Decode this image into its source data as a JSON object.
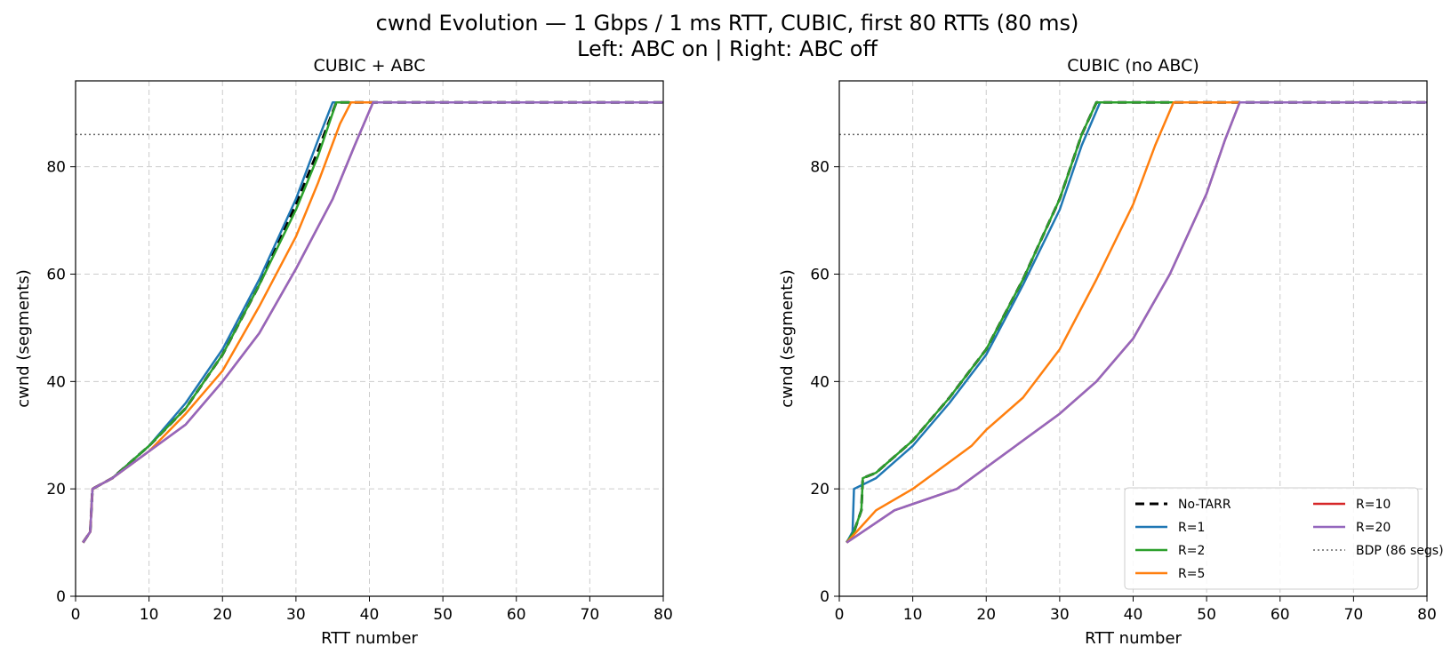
{
  "chart_data": {
    "type": "line",
    "title_line1": "cwnd Evolution — 1 Gbps / 1 ms RTT, CUBIC, first 80 RTTs (80 ms)",
    "title_line2": "Left: ABC on  |  Right: ABC off",
    "legend_labels": {
      "notarr": "No-TARR",
      "r1": "R=1",
      "r2": "R=2",
      "r5": "R=5",
      "r10": "R=10",
      "r20": "R=20",
      "bdp": "BDP (86 segs)"
    },
    "colors": {
      "notarr": "#000000",
      "r1": "#1f77b4",
      "r2": "#2ca02c",
      "r5": "#ff7f0e",
      "r10": "#d62728",
      "r20": "#9467bd",
      "bdp": "#666666"
    },
    "bdp": 86,
    "panels": [
      {
        "title": "CUBIC + ABC",
        "xlabel": "RTT number",
        "ylabel": "cwnd (segments)",
        "xlim": [
          0,
          80
        ],
        "ylim": [
          0,
          96
        ],
        "xticks": [
          0,
          10,
          20,
          30,
          40,
          50,
          60,
          70,
          80
        ],
        "yticks": [
          0,
          20,
          40,
          60,
          80
        ],
        "legend": false,
        "series": [
          {
            "key": "notarr",
            "name": "No-TARR",
            "dashed": true,
            "x": [
              1,
              2,
              2.3,
              5,
              10,
              15,
              20,
              25,
              30,
              33,
              35.5,
              80
            ],
            "y": [
              10,
              12,
              20,
              22,
              28,
              35,
              45,
              58,
              73,
              83,
              92,
              92
            ]
          },
          {
            "key": "r1",
            "name": "R=1",
            "x": [
              1,
              2,
              2.3,
              5,
              10,
              15,
              20,
              25,
              30,
              33,
              35,
              80
            ],
            "y": [
              10,
              12,
              20,
              22,
              28,
              36,
              46,
              59,
              74,
              85,
              92,
              92
            ]
          },
          {
            "key": "r2",
            "name": "R=2",
            "x": [
              1,
              2,
              2.3,
              5,
              10,
              15,
              20,
              25,
              30,
              33,
              35.5,
              80
            ],
            "y": [
              10,
              12,
              20,
              22,
              28,
              35,
              45,
              58,
              72,
              82,
              92,
              92
            ]
          },
          {
            "key": "r5",
            "name": "R=5",
            "x": [
              1,
              2,
              2.3,
              5,
              10,
              15,
              20,
              25,
              30,
              33,
              36,
              37.5,
              80
            ],
            "y": [
              10,
              12,
              20,
              22,
              27,
              34,
              42,
              54,
              67,
              77,
              88,
              92,
              92
            ]
          },
          {
            "key": "r10",
            "name": "R=10",
            "x": [
              1,
              2,
              2.3,
              5,
              10,
              15,
              20,
              25,
              30,
              35,
              38,
              40.5,
              80
            ],
            "y": [
              10,
              12,
              20,
              22,
              27,
              32,
              40,
              49,
              61,
              74,
              84,
              92,
              92
            ]
          },
          {
            "key": "r20",
            "name": "R=20",
            "x": [
              1,
              2,
              2.3,
              5,
              10,
              15,
              20,
              25,
              30,
              35,
              38,
              40.5,
              80
            ],
            "y": [
              10,
              12,
              20,
              22,
              27,
              32,
              40,
              49,
              61,
              74,
              84,
              92,
              92
            ]
          }
        ]
      },
      {
        "title": "CUBIC  (no ABC)",
        "xlabel": "RTT number",
        "ylabel": "cwnd (segments)",
        "xlim": [
          0,
          80
        ],
        "ylim": [
          0,
          96
        ],
        "xticks": [
          0,
          10,
          20,
          30,
          40,
          50,
          60,
          70,
          80
        ],
        "yticks": [
          0,
          20,
          40,
          60,
          80
        ],
        "legend": true,
        "series": [
          {
            "key": "notarr",
            "name": "No-TARR",
            "dashed": true,
            "x": [
              1,
              2,
              3,
              3.2,
              5,
              10,
              15,
              20,
              25,
              30,
              33,
              35,
              80
            ],
            "y": [
              10,
              12,
              16,
              22,
              23,
              29,
              37,
              46,
              59,
              74,
              86,
              92,
              92
            ]
          },
          {
            "key": "r1",
            "name": "R=1",
            "x": [
              1,
              1.8,
              2,
              5,
              10,
              15,
              20,
              25,
              30,
              33,
              35.5,
              80
            ],
            "y": [
              10,
              12,
              20,
              22,
              28,
              36,
              45,
              58,
              72,
              84,
              92,
              92
            ]
          },
          {
            "key": "r2",
            "name": "R=2",
            "x": [
              1,
              2,
              3,
              3.2,
              5,
              10,
              15,
              20,
              25,
              30,
              33,
              35,
              80
            ],
            "y": [
              10,
              12,
              16,
              22,
              23,
              29,
              37,
              46,
              59,
              74,
              86,
              92,
              92
            ]
          },
          {
            "key": "r5",
            "name": "R=5",
            "x": [
              1,
              3,
              5,
              10,
              15,
              18,
              20,
              25,
              30,
              35,
              40,
              43,
              45.5,
              80
            ],
            "y": [
              10,
              13,
              16,
              20,
              25,
              28,
              31,
              37,
              46,
              59,
              73,
              84,
              92,
              92
            ]
          },
          {
            "key": "r10",
            "name": "R=10",
            "x": [
              1,
              7.5,
              16,
              20,
              25,
              30,
              35,
              40,
              45,
              50,
              52.5,
              54.5,
              80
            ],
            "y": [
              10,
              16,
              20,
              24,
              29,
              34,
              40,
              48,
              60,
              75,
              85,
              92,
              92
            ]
          },
          {
            "key": "r20",
            "name": "R=20",
            "x": [
              1,
              7.5,
              16,
              20,
              25,
              30,
              35,
              40,
              45,
              50,
              52.5,
              54.5,
              80
            ],
            "y": [
              10,
              16,
              20,
              24,
              29,
              34,
              40,
              48,
              60,
              75,
              85,
              92,
              92
            ]
          }
        ]
      }
    ]
  }
}
